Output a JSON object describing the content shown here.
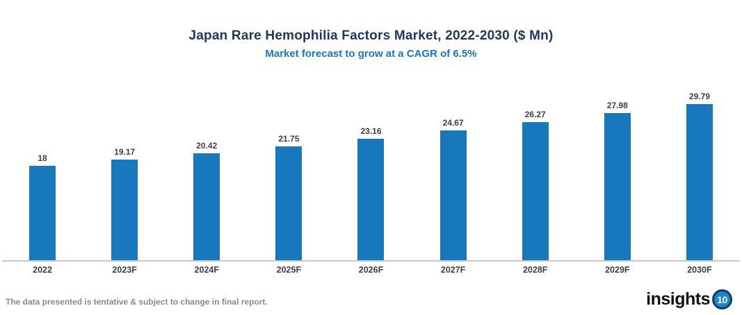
{
  "header": {
    "title": "Japan Rare Hemophilia Factors Market, 2022-2030 ($ Mn)",
    "subtitle": "Market forecast to grow at a CAGR of 6.5%"
  },
  "chart_data": {
    "type": "bar",
    "title": "Japan Rare Hemophilia Factors Market, 2022-2030 ($ Mn)",
    "subtitle": "Market forecast to grow at a CAGR of 6.5%",
    "categories": [
      "2022",
      "2023F",
      "2024F",
      "2025F",
      "2026F",
      "2027F",
      "2028F",
      "2029F",
      "2030F"
    ],
    "values": [
      18,
      19.17,
      20.42,
      21.75,
      23.16,
      24.67,
      26.27,
      27.98,
      29.79
    ],
    "value_labels": [
      "18",
      "19.17",
      "20.42",
      "21.75",
      "23.16",
      "24.67",
      "26.27",
      "27.98",
      "29.79"
    ],
    "xlabel": "",
    "ylabel": "",
    "ylim": [
      0,
      33
    ],
    "grid": false,
    "legend": "none",
    "bar_color": "#1878be",
    "cagr_percent": 6.5
  },
  "footer": {
    "disclaimer": "The data presented is tentative & subject to change in final report.",
    "logo_text": "insights",
    "logo_badge": "10"
  },
  "colors": {
    "title": "#1f3864",
    "subtitle": "#1777c2",
    "bar": "#1878be",
    "axis_line": "#c9c9c9",
    "label_text": "#404040",
    "disclaimer_text": "#8a8a8a",
    "logo_badge_fill": "#1c86c9",
    "logo_badge_ring": "#123a66"
  }
}
